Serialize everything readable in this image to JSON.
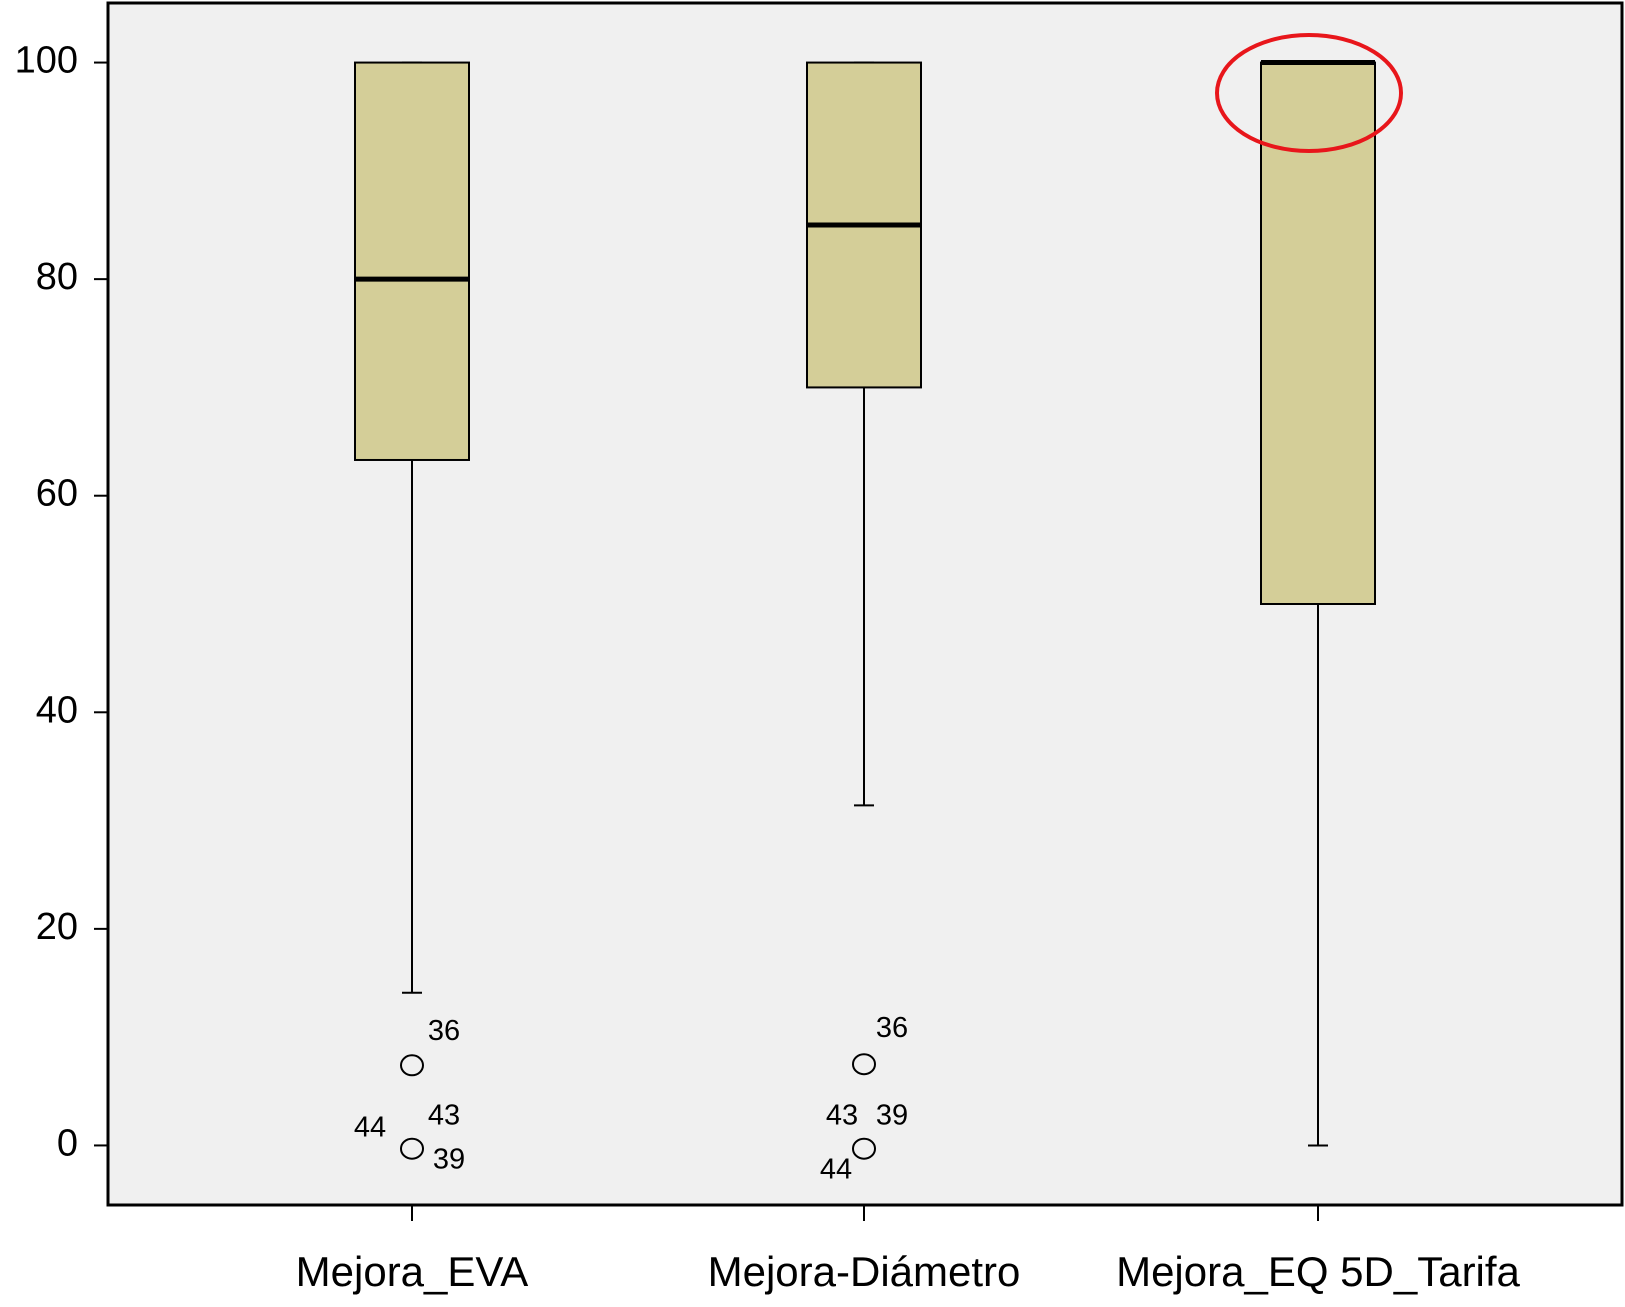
{
  "chart_data": {
    "type": "boxplot",
    "categories": [
      "Mejora_EVA",
      "Mejora-Diámetro",
      "Mejora_EQ 5D_Tarifa"
    ],
    "color": "#d4ce98",
    "ylim": [
      -5.5,
      105.5
    ],
    "yticks": [
      0,
      20,
      40,
      60,
      80,
      100
    ],
    "boxes": [
      {
        "whisker_low": 14.1,
        "q1": 63.3,
        "median": 80,
        "q3": 100,
        "whisker_high": 100,
        "outliers": [
          {
            "value": 7.4,
            "labels": [
              "36"
            ]
          },
          {
            "value": -0.3,
            "labels": [
              "44",
              "43",
              "39"
            ]
          }
        ]
      },
      {
        "whisker_low": 31.4,
        "q1": 70,
        "median": 85,
        "q3": 100,
        "whisker_high": 100,
        "outliers": [
          {
            "value": 7.5,
            "labels": [
              "36"
            ]
          },
          {
            "value": -0.3,
            "labels": [
              "43",
              "39",
              "44"
            ]
          }
        ]
      },
      {
        "whisker_low": 0,
        "q1": 50,
        "median": 100,
        "q3": 100,
        "whisker_high": 100,
        "outliers": []
      }
    ]
  }
}
